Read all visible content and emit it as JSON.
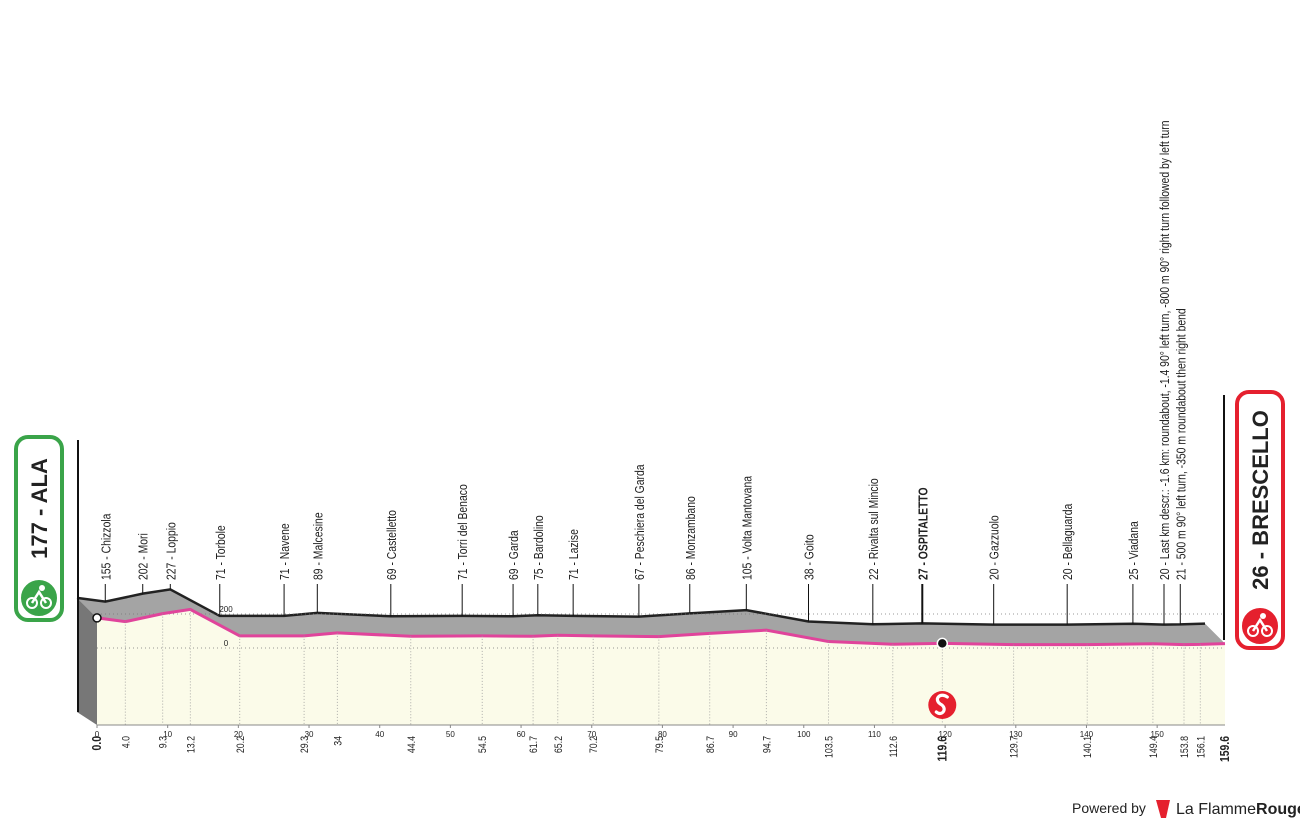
{
  "chart_data": {
    "type": "elevation-profile",
    "xlim": [
      0,
      159.6
    ],
    "xticks": [
      0,
      10,
      20,
      30,
      40,
      50,
      60,
      70,
      80,
      90,
      100,
      110,
      120,
      130,
      140,
      150
    ],
    "yticks": [
      200,
      0
    ],
    "profile_color": "#e0449b",
    "ground_color": "#fbfbe9",
    "relief_color": "#a4a4a4",
    "waypoints": [
      {
        "kind": "start",
        "km": {
          "value": 0,
          "label": "0.0"
        },
        "altitude": 177,
        "label": "177 - ALA",
        "color": "#3aa449"
      },
      {
        "km": {
          "value": 4,
          "label": "4.0"
        },
        "altitude": 155,
        "label": "155 - Chizzola"
      },
      {
        "km": {
          "value": 9.3,
          "label": "9.3"
        },
        "altitude": 202,
        "label": "202 - Mori"
      },
      {
        "km": {
          "value": 13.2,
          "label": "13.2"
        },
        "altitude": 227,
        "label": "227 - Loppio"
      },
      {
        "km": {
          "value": 20.2,
          "label": "20.2"
        },
        "altitude": 71,
        "label": "71 - Torbole"
      },
      {
        "km": {
          "value": 29.3,
          "label": "29.3"
        },
        "altitude": 71,
        "label": "71 - Navene"
      },
      {
        "km": 34.0,
        "altitude": 89,
        "label": "89 - Malcesine"
      },
      {
        "km": 44.4,
        "altitude": 69,
        "label": "69 - Castelletto"
      },
      {
        "km": 54.5,
        "altitude": 71,
        "label": "71 - Torri del Benaco"
      },
      {
        "km": 61.7,
        "altitude": 69,
        "label": "69 - Garda"
      },
      {
        "km": 65.2,
        "altitude": 75,
        "label": "75 - Bardolino"
      },
      {
        "km": 70.2,
        "altitude": 71,
        "label": "71 - Lazise"
      },
      {
        "km": 79.5,
        "altitude": 67,
        "label": "67 - Peschiera del Garda"
      },
      {
        "km": 86.7,
        "altitude": 86,
        "label": "86 - Monzambano"
      },
      {
        "km": 94.7,
        "altitude": 105,
        "label": "105 - Volta Mantovana"
      },
      {
        "km": 103.5,
        "altitude": 38,
        "label": "38 - Goito"
      },
      {
        "km": 112.6,
        "altitude": 22,
        "label": "22 - Rivalta sul Mincio"
      },
      {
        "kind": "sprint",
        "km": 119.6,
        "altitude": 27,
        "label": "27 - OSPITALETTO"
      },
      {
        "km": 129.7,
        "altitude": 20,
        "label": "20 - Gazzuolo"
      },
      {
        "km": 140.1,
        "altitude": 20,
        "label": "20 - Bellaguarda"
      },
      {
        "km": 149.4,
        "altitude": 25,
        "label": "25 - Viadana"
      },
      {
        "km": 153.8,
        "altitude": 20,
        "label": "20 - Last km descr.: -1.6 km: roundabout, -1.4 90° left turn, -800 m 90° right turn followed by left turn"
      },
      {
        "km": 156.1,
        "altitude": 21,
        "label": "21 - 500 m 90° left turn, -350 m roundabout then right bend"
      },
      {
        "kind": "finish",
        "km": 159.6,
        "altitude": 26,
        "label": "26 - BRESCELLO",
        "color": "#e5202e"
      }
    ]
  },
  "footer": {
    "powered_by": "Powered by",
    "brand_light": "La Flamme",
    "brand_bold": "Rouge"
  }
}
